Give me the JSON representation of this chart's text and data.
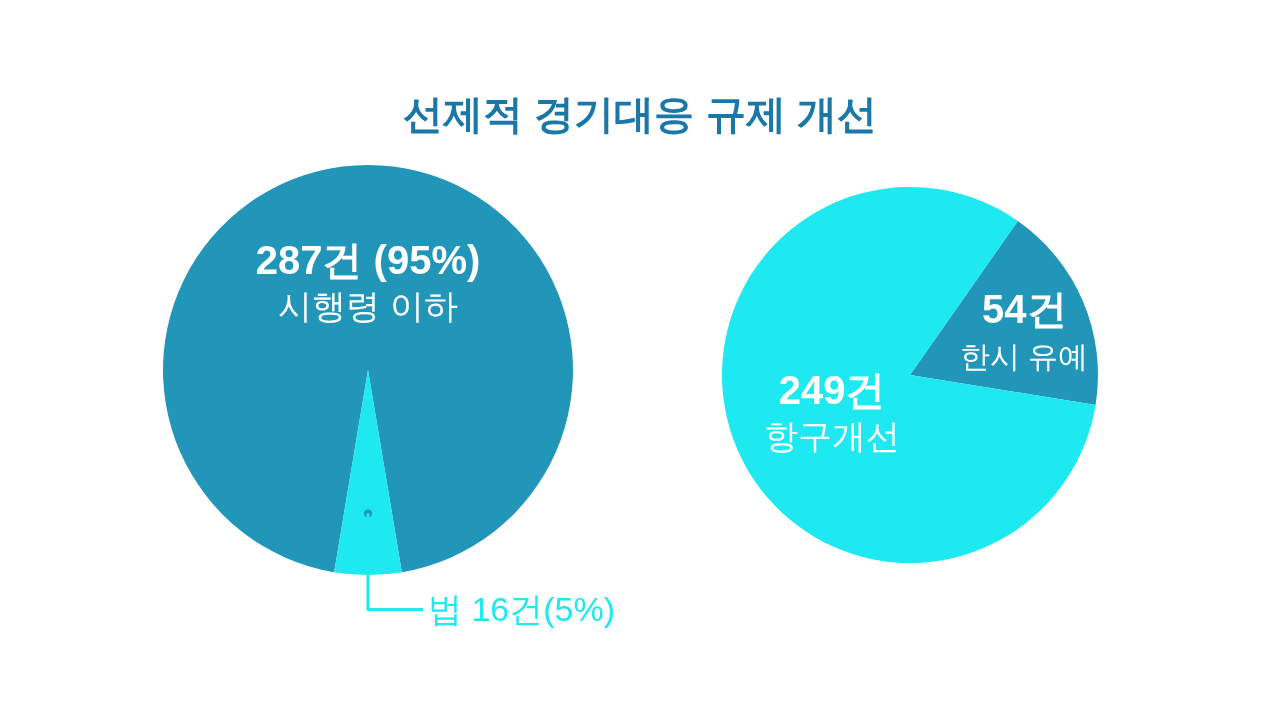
{
  "chart_data": [
    {
      "type": "pie",
      "title": "선제적 경기대응 규제 개선",
      "categories": [
        "시행령 이하",
        "법"
      ],
      "values": [
        287,
        16
      ],
      "colors": [
        "#2196b8",
        "#1ee8f0"
      ],
      "value_labels": [
        "287건 (95%)",
        "16건(5%)"
      ]
    },
    {
      "type": "pie",
      "categories": [
        "한시 유예",
        "항구개선"
      ],
      "values": [
        54,
        249
      ],
      "colors": [
        "#2196b8",
        "#1ee8f0"
      ],
      "value_labels": [
        "54건",
        "249건"
      ]
    }
  ]
}
